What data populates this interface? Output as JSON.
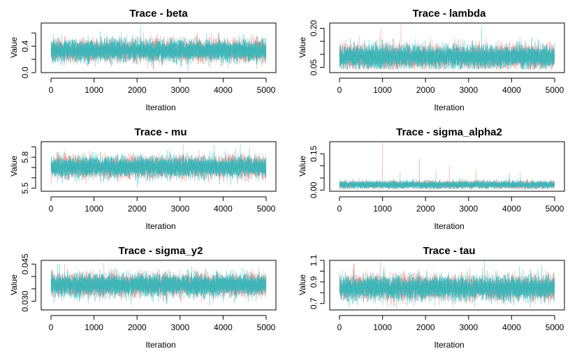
{
  "colors": {
    "chain1": "#f8766d",
    "chain2": "#00bfc4",
    "frame": "#000000"
  },
  "chart_data": [
    {
      "type": "line",
      "title": "Trace - beta",
      "xlabel": "Iteration",
      "ylabel": "Value",
      "xlim": [
        0,
        5000
      ],
      "ylim": [
        0.0,
        0.75
      ],
      "xticks": [
        "0",
        "1000",
        "2000",
        "3000",
        "4000",
        "5000"
      ],
      "xtick_values": [
        0,
        1000,
        2000,
        3000,
        4000,
        5000
      ],
      "yticks": [
        "0.0",
        "0.4"
      ],
      "ytick_values": [
        0.0,
        0.4
      ],
      "extra_ytick_values": [
        0.2,
        0.6
      ],
      "series": [
        {
          "center": 0.33,
          "spread": 0.08,
          "min": 0.0,
          "max": 0.72,
          "spikes": []
        },
        {
          "center": 0.33,
          "spread": 0.08,
          "min": 0.0,
          "max": 0.72,
          "spikes": [
            [
              2080,
              0.71
            ],
            [
              1640,
              0.62
            ]
          ]
        }
      ]
    },
    {
      "type": "line",
      "title": "Trace - lambda",
      "xlabel": "Iteration",
      "ylabel": "Value",
      "xlim": [
        0,
        5000
      ],
      "ylim": [
        0.03,
        0.22
      ],
      "xticks": [
        "0",
        "1000",
        "2000",
        "3000",
        "4000",
        "5000"
      ],
      "xtick_values": [
        0,
        1000,
        2000,
        3000,
        4000,
        5000
      ],
      "yticks": [
        "0.05",
        "0.20"
      ],
      "ytick_values": [
        0.05,
        0.2
      ],
      "extra_ytick_values": [
        0.1,
        0.15
      ],
      "series": [
        {
          "center": 0.09,
          "spread": 0.022,
          "min": 0.04,
          "max": 0.22,
          "spikes": [
            [
              1430,
              0.215
            ],
            [
              960,
              0.2
            ]
          ]
        },
        {
          "center": 0.09,
          "spread": 0.022,
          "min": 0.04,
          "max": 0.22,
          "spikes": [
            [
              3300,
              0.21
            ]
          ]
        }
      ]
    },
    {
      "type": "line",
      "title": "Trace - mu",
      "xlabel": "Iteration",
      "ylabel": "Value",
      "xlim": [
        0,
        5000
      ],
      "ylim": [
        5.47,
        5.95
      ],
      "xticks": [
        "0",
        "1000",
        "2000",
        "3000",
        "4000",
        "5000"
      ],
      "xtick_values": [
        0,
        1000,
        2000,
        3000,
        4000,
        5000
      ],
      "yticks": [
        "5.5",
        "5.8"
      ],
      "ytick_values": [
        5.5,
        5.8
      ],
      "extra_ytick_values": [
        5.6,
        5.7,
        5.9
      ],
      "series": [
        {
          "center": 5.705,
          "spread": 0.05,
          "min": 5.5,
          "max": 5.93,
          "spikes": [
            [
              3070,
              5.92
            ]
          ]
        },
        {
          "center": 5.705,
          "spread": 0.05,
          "min": 5.5,
          "max": 5.93,
          "spikes": [
            [
              4400,
              5.92
            ],
            [
              2000,
              5.5
            ]
          ]
        }
      ]
    },
    {
      "type": "line",
      "title": "Trace - sigma_alpha2",
      "xlabel": "Iteration",
      "ylabel": "Value",
      "xlim": [
        0,
        5000
      ],
      "ylim": [
        -0.005,
        0.2
      ],
      "xticks": [
        "0",
        "1000",
        "2000",
        "3000",
        "4000",
        "5000"
      ],
      "xtick_values": [
        0,
        1000,
        2000,
        3000,
        4000,
        5000
      ],
      "yticks": [
        "0.00",
        "0.15"
      ],
      "ytick_values": [
        0.0,
        0.15
      ],
      "extra_ytick_values": [
        0.05,
        0.1
      ],
      "series": [
        {
          "center": 0.022,
          "spread": 0.008,
          "min": 0.003,
          "max": 0.2,
          "spikes": [
            [
              1000,
              0.195
            ],
            [
              1860,
              0.13
            ],
            [
              3170,
              0.085
            ],
            [
              2560,
              0.1
            ],
            [
              4200,
              0.075
            ]
          ]
        },
        {
          "center": 0.022,
          "spread": 0.008,
          "min": 0.003,
          "max": 0.2,
          "spikes": [
            [
              1410,
              0.075
            ],
            [
              2240,
              0.08
            ],
            [
              3950,
              0.07
            ]
          ]
        }
      ]
    },
    {
      "type": "line",
      "title": "Trace - sigma_y2",
      "xlabel": "Iteration",
      "ylabel": "Value",
      "xlim": [
        0,
        5000
      ],
      "ylim": [
        0.0265,
        0.0465
      ],
      "xticks": [
        "0",
        "1000",
        "2000",
        "3000",
        "4000",
        "5000"
      ],
      "xtick_values": [
        0,
        1000,
        2000,
        3000,
        4000,
        5000
      ],
      "yticks": [
        "0.030",
        "0.045"
      ],
      "ytick_values": [
        0.03,
        0.045
      ],
      "extra_ytick_values": [
        0.035,
        0.04
      ],
      "series": [
        {
          "center": 0.0365,
          "spread": 0.0022,
          "min": 0.028,
          "max": 0.046,
          "spikes": [
            [
              1230,
              0.0455
            ]
          ]
        },
        {
          "center": 0.0365,
          "spread": 0.0022,
          "min": 0.028,
          "max": 0.046,
          "spikes": [
            [
              200,
              0.045
            ]
          ]
        }
      ]
    },
    {
      "type": "line",
      "title": "Trace - tau",
      "xlabel": "Iteration",
      "ylabel": "Value",
      "xlim": [
        0,
        5000
      ],
      "ylim": [
        0.64,
        1.1
      ],
      "xticks": [
        "0",
        "1000",
        "2000",
        "3000",
        "4000",
        "5000"
      ],
      "xtick_values": [
        0,
        1000,
        2000,
        3000,
        4000,
        5000
      ],
      "yticks": [
        "0.7",
        "0.9",
        "1.1"
      ],
      "ytick_values": [
        0.7,
        0.9,
        1.1
      ],
      "extra_ytick_values": [
        0.8,
        1.0
      ],
      "series": [
        {
          "center": 0.845,
          "spread": 0.055,
          "min": 0.66,
          "max": 1.1,
          "spikes": [
            [
              950,
              1.09
            ],
            [
              330,
              1.07
            ]
          ]
        },
        {
          "center": 0.845,
          "spread": 0.055,
          "min": 0.66,
          "max": 1.1,
          "spikes": [
            [
              4700,
              1.05
            ]
          ]
        }
      ]
    }
  ]
}
